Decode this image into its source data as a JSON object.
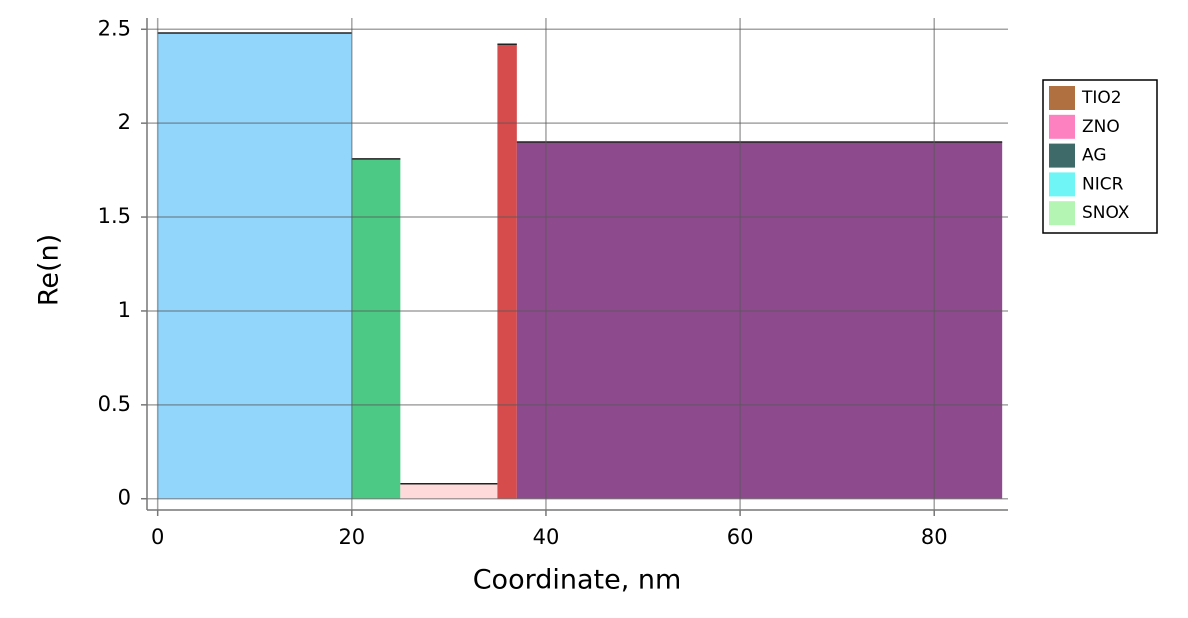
{
  "chart_data": {
    "type": "bar",
    "x_label": "Coordinate, nm",
    "y_label": "Re(n)",
    "segments": [
      {
        "x0": 0,
        "x1": 20,
        "value": 2.48,
        "color": "#92d6fc"
      },
      {
        "x0": 20,
        "x1": 25,
        "value": 1.81,
        "color": "#4dc986"
      },
      {
        "x0": 25,
        "x1": 35,
        "value": 0.08,
        "color": "#ffdada"
      },
      {
        "x0": 35,
        "x1": 37,
        "value": 2.42,
        "color": "#d64b4b"
      },
      {
        "x0": 37,
        "x1": 87,
        "value": 1.9,
        "color": "#8d4b8d"
      }
    ],
    "legend": [
      {
        "name": "TIO2",
        "color": "#b0703f"
      },
      {
        "name": "ZNO",
        "color": "#fd80c0"
      },
      {
        "name": "AG",
        "color": "#3e6a6a"
      },
      {
        "name": "NICR",
        "color": "#6ff5f5"
      },
      {
        "name": "SNOX",
        "color": "#b4f5b4"
      }
    ],
    "xlim": [
      -1.1,
      87.6
    ],
    "ylim": [
      -0.06,
      2.56
    ],
    "xticks": [
      0,
      20,
      40,
      60,
      80
    ],
    "yticks": [
      0,
      0.5,
      1,
      1.5,
      2,
      2.5
    ],
    "grid": true,
    "legend_position": "right"
  }
}
